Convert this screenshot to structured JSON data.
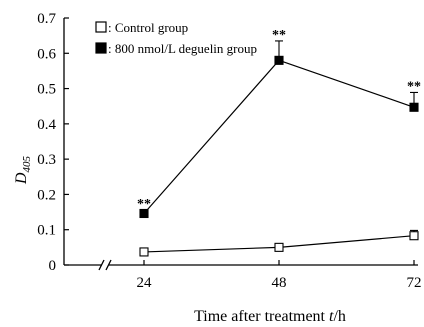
{
  "chart_data": {
    "type": "line",
    "title": "",
    "ylabel_main": "D",
    "ylabel_sub": "405",
    "xlabel_main": "Time after treatment ",
    "xlabel_italic": "t",
    "xlabel_unit": "/h",
    "x": [
      24,
      48,
      72
    ],
    "x_ticks": [
      "24",
      "48",
      "72"
    ],
    "y_ticks": [
      "0",
      "0.1",
      "0.2",
      "0.3",
      "0.4",
      "0.5",
      "0.6",
      "0.7"
    ],
    "ylim": [
      0,
      0.7
    ],
    "axis_break": true,
    "grid": false,
    "legend_position": "top-left",
    "series": [
      {
        "name": ": Control group",
        "marker": "open-square",
        "color": "#000000",
        "values": [
          0.037,
          0.05,
          0.083
        ],
        "errors": [
          0.0,
          0.003,
          0.015
        ],
        "annotations": [
          "",
          "",
          ""
        ]
      },
      {
        "name": ": 800 nmol/L deguelin group",
        "marker": "filled-square",
        "color": "#000000",
        "values": [
          0.146,
          0.58,
          0.447
        ],
        "errors": [
          0.01,
          0.055,
          0.042
        ],
        "annotations": [
          "**",
          "**",
          "**"
        ]
      }
    ]
  }
}
